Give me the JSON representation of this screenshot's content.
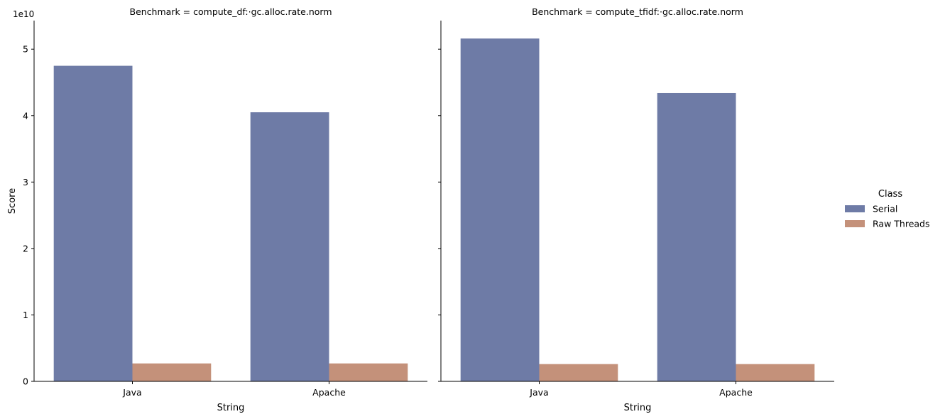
{
  "chart_data": {
    "type": "bar",
    "y_offset_label": "1e10",
    "ylabel": "Score",
    "ylim": [
      0,
      5.43
    ],
    "yticks": [
      0,
      1,
      2,
      3,
      4,
      5
    ],
    "legend": {
      "title": "Class",
      "placement": "right"
    },
    "series": [
      {
        "name": "Serial",
        "color": "#6e7ba6"
      },
      {
        "name": "Raw Threads",
        "color": "#c4917a"
      }
    ],
    "panels": [
      {
        "title": "Benchmark = compute_df:·gc.alloc.rate.norm",
        "xlabel": "String",
        "categories": [
          "Java",
          "Apache"
        ],
        "values": {
          "Serial": [
            4.75,
            4.05
          ],
          "Raw Threads": [
            0.27,
            0.27
          ]
        }
      },
      {
        "title": "Benchmark = compute_tfidf:·gc.alloc.rate.norm",
        "xlabel": "String",
        "categories": [
          "Java",
          "Apache"
        ],
        "values": {
          "Serial": [
            5.16,
            4.34
          ],
          "Raw Threads": [
            0.26,
            0.26
          ]
        }
      }
    ]
  }
}
